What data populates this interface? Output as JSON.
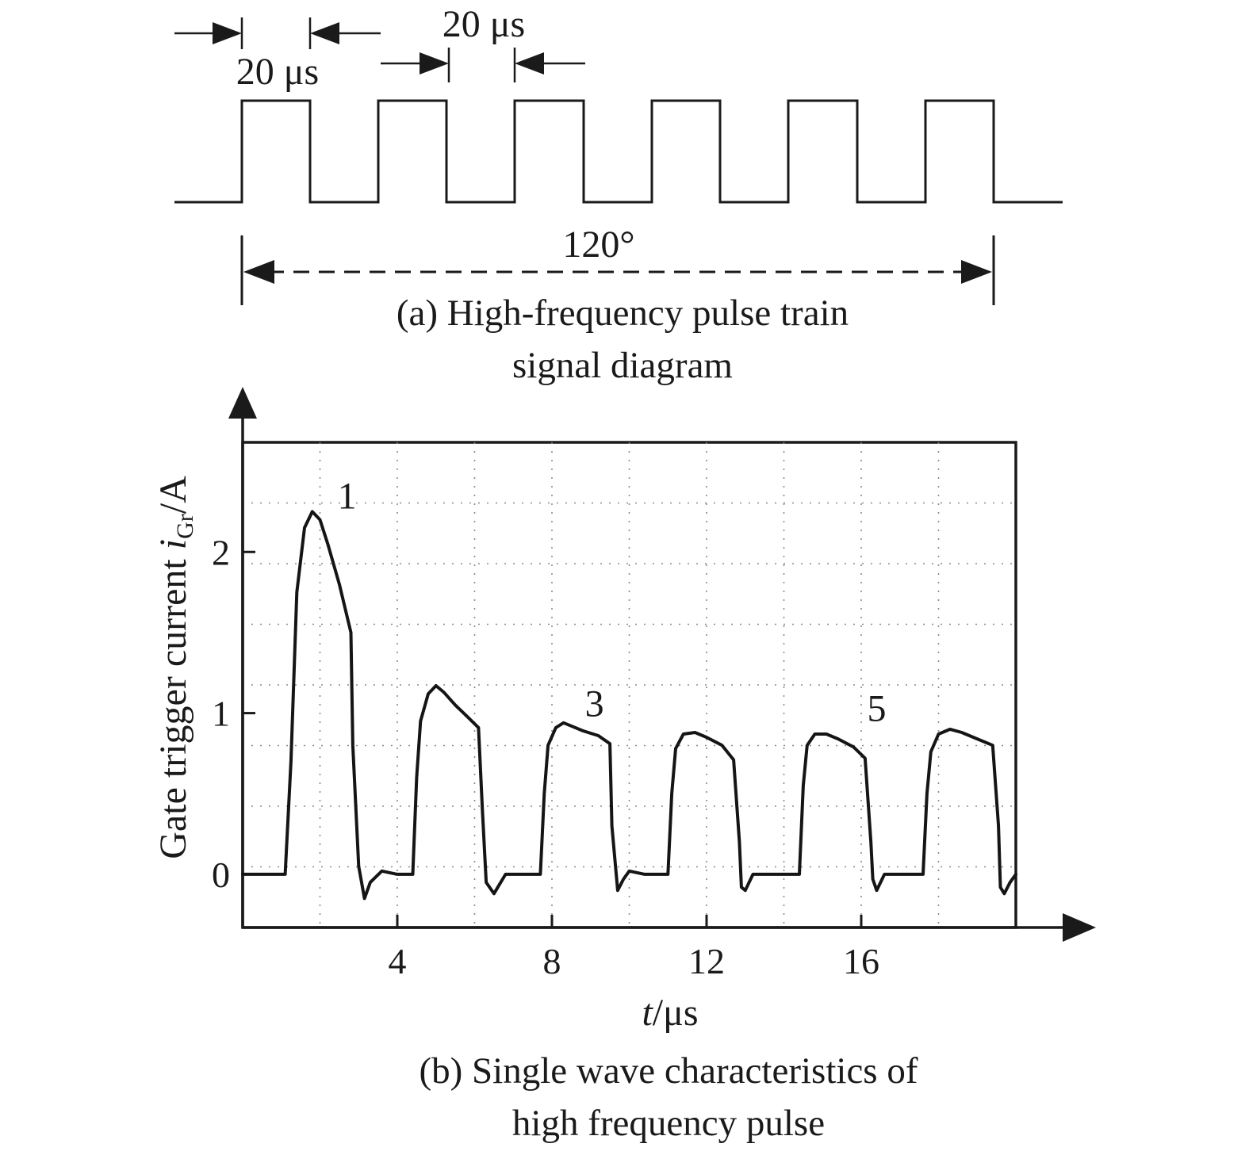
{
  "pulse_diagram": {
    "width_label": "20 μs",
    "gap_label": "20 μs",
    "span_label": "120°",
    "caption_line1": "(a) High-frequency pulse train",
    "caption_line2": "signal diagram",
    "pulse_count": 6
  },
  "chart_data": {
    "type": "line",
    "xlabel_var": "t",
    "xlabel_unit": "/μs",
    "ylabel_main": "Gate trigger current ",
    "ylabel_var": "i",
    "ylabel_sub": "Gr",
    "ylabel_unit": "/A",
    "x_ticks": [
      4,
      8,
      12,
      16
    ],
    "y_ticks": [
      0,
      1,
      2
    ],
    "xlim": [
      0,
      20
    ],
    "ylim": [
      -0.33,
      2.68
    ],
    "grid": true,
    "peak_labels": [
      {
        "text": "1",
        "x": 2.7,
        "y": 2.27
      },
      {
        "text": "3",
        "x": 9.1,
        "y": 0.98
      },
      {
        "text": "5",
        "x": 16.4,
        "y": 0.95
      }
    ],
    "series": [
      {
        "x": [
          0,
          1.1,
          1.25,
          1.4,
          1.6,
          1.8,
          2.0,
          2.2,
          2.5,
          2.8,
          2.85,
          3.0,
          3.15,
          3.3,
          3.6,
          4.0,
          4.4,
          4.5,
          4.6,
          4.8,
          5.0,
          5.2,
          5.5,
          5.8,
          6.1,
          6.2,
          6.3,
          6.5,
          6.8,
          7.2,
          7.7,
          7.8,
          7.9,
          8.1,
          8.3,
          8.5,
          8.8,
          9.2,
          9.5,
          9.55,
          9.7,
          9.85,
          10.0,
          10.4,
          11.0,
          11.1,
          11.2,
          11.4,
          11.7,
          12.0,
          12.4,
          12.7,
          12.85,
          12.9,
          13.0,
          13.2,
          13.5,
          14.0,
          14.4,
          14.5,
          14.6,
          14.8,
          15.1,
          15.4,
          15.8,
          16.1,
          16.25,
          16.3,
          16.4,
          16.6,
          17.0,
          17.6,
          17.7,
          17.8,
          18.0,
          18.3,
          18.6,
          19.0,
          19.4,
          19.55,
          19.6,
          19.7,
          19.85,
          20.0
        ],
        "y": [
          0,
          0,
          0.7,
          1.75,
          2.15,
          2.25,
          2.2,
          2.05,
          1.8,
          1.5,
          0.8,
          0.05,
          -0.15,
          -0.05,
          0.02,
          0,
          0,
          0.6,
          0.95,
          1.12,
          1.17,
          1.13,
          1.05,
          0.98,
          0.91,
          0.4,
          -0.05,
          -0.12,
          0,
          0,
          0,
          0.5,
          0.8,
          0.91,
          0.94,
          0.92,
          0.89,
          0.86,
          0.81,
          0.3,
          -0.1,
          -0.03,
          0.02,
          0,
          0,
          0.5,
          0.78,
          0.87,
          0.88,
          0.85,
          0.8,
          0.71,
          0.2,
          -0.08,
          -0.1,
          0,
          0,
          0,
          0,
          0.55,
          0.8,
          0.87,
          0.87,
          0.84,
          0.79,
          0.72,
          0.2,
          -0.03,
          -0.1,
          0,
          0,
          0,
          0.5,
          0.76,
          0.87,
          0.9,
          0.88,
          0.84,
          0.8,
          0.3,
          -0.08,
          -0.12,
          -0.05,
          0
        ]
      }
    ],
    "caption_line1": "(b) Single wave characteristics of",
    "caption_line2": "high frequency pulse"
  },
  "colors": {
    "ink": "#1a1a1a",
    "grid": "#8a8a8a",
    "trace": "#151515"
  }
}
